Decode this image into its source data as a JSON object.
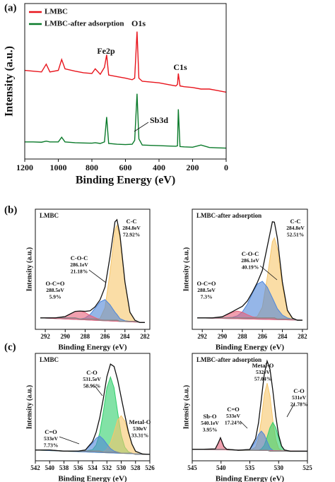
{
  "panel_labels": [
    "(a)",
    "(b)",
    "(c)"
  ],
  "chart_data": [
    {
      "type": "line",
      "xlabel": "Binding Energy (eV)",
      "ylabel": "Intensity (a.u.)",
      "xlim": [
        1200,
        0
      ],
      "xticks": [
        1200,
        1000,
        800,
        600,
        400,
        200,
        0
      ],
      "ylim": [
        0,
        100
      ],
      "legend": "upper left",
      "x": [
        1200,
        1150,
        1100,
        1072,
        1050,
        1000,
        980,
        960,
        900,
        850,
        800,
        780,
        750,
        725,
        712,
        700,
        650,
        600,
        560,
        545,
        531,
        520,
        500,
        450,
        400,
        350,
        300,
        290,
        285,
        275,
        250,
        200,
        150,
        100,
        50,
        0
      ],
      "series": [
        {
          "name": "LMBC",
          "color": "#e8141c",
          "values": [
            57,
            56.5,
            56,
            61,
            56,
            57,
            64,
            58,
            56.5,
            55.5,
            55,
            58,
            54.5,
            59,
            67,
            54,
            53,
            52,
            51,
            52,
            82,
            52,
            50,
            49.5,
            49,
            48,
            47,
            48,
            55,
            47,
            46.5,
            46,
            45,
            45,
            44,
            43
          ]
        },
        {
          "name": "LMBC-after adsorption",
          "color": "#0a7a2a",
          "values": [
            11,
            11,
            10.8,
            11.5,
            11,
            11,
            14,
            11,
            10.5,
            10.3,
            10.2,
            10.5,
            10,
            11,
            27,
            10,
            9.5,
            9.3,
            9.5,
            12,
            42,
            13,
            9,
            8.8,
            8.6,
            8.4,
            8.2,
            8.5,
            32,
            8,
            7.8,
            7.6,
            9,
            7.4,
            7.2,
            7
          ]
        }
      ],
      "annotations": [
        {
          "lines": [
            "Fe2p"
          ]
        },
        {
          "lines": [
            "O1s"
          ]
        },
        {
          "lines": [
            "C1s"
          ]
        },
        {
          "lines": [
            "Sb3d"
          ]
        }
      ]
    },
    {
      "type": "line",
      "title": "LMBC",
      "xlabel": "Binding Energy (eV)",
      "ylabel": "Intensity (a.u.)",
      "xlim": [
        293,
        281.5
      ],
      "xticks": [
        292,
        290,
        288,
        286,
        284,
        282
      ],
      "ylim": [
        0,
        105
      ],
      "x": [
        292.5,
        291,
        290,
        289,
        288.5,
        288,
        287.5,
        287,
        286.5,
        286,
        285.5,
        285,
        284.8,
        284.5,
        284,
        283.5,
        283,
        282.5,
        282
      ],
      "series": [
        {
          "color": "#f6c66b",
          "fill": true,
          "values": [
            10,
            10,
            10,
            10,
            9,
            9,
            9,
            9,
            9.5,
            19,
            50,
            87,
            91,
            80,
            41,
            15,
            8,
            6,
            6
          ]
        },
        {
          "color": "#4f86d9",
          "fill": true,
          "values": [
            10,
            10,
            10,
            10,
            9,
            10,
            13,
            18.5,
            24,
            26,
            21.5,
            15,
            13,
            9.4,
            7.5,
            7,
            7,
            6,
            6
          ]
        },
        {
          "color": "#e8607a",
          "fill": true,
          "values": [
            10,
            10,
            11.2,
            15.7,
            16,
            14.7,
            12.2,
            10.2,
            8.3,
            8,
            8,
            8,
            8,
            7,
            7,
            7,
            7,
            6,
            6
          ]
        },
        {
          "color": "#888888",
          "values": [
            10,
            10,
            10,
            10,
            9,
            9,
            9,
            9,
            8,
            8,
            8,
            8,
            8,
            7,
            7,
            7,
            7,
            6,
            6
          ]
        },
        {
          "color": "#111111",
          "values": [
            10,
            10,
            11.2,
            15.7,
            16,
            15.7,
            16.2,
            19.7,
            25.8,
            37,
            63.5,
            94,
            95.8,
            82.4,
            41.5,
            15,
            8,
            6,
            6
          ]
        }
      ],
      "annotations": [
        {
          "lines": [
            "C-C",
            "284.8eV",
            "72.92%"
          ]
        },
        {
          "lines": [
            "C-O-C",
            "286.1eV",
            "21.18%"
          ]
        },
        {
          "lines": [
            "O-C=O",
            "288.5eV",
            "5.9%"
          ]
        }
      ]
    },
    {
      "type": "line",
      "title": "LMBC-after adsorption",
      "xlabel": "Binding Energy (eV)",
      "ylabel": "Intensity (a.u.)",
      "xlim": [
        293,
        281.5
      ],
      "xticks": [
        292,
        290,
        288,
        286,
        284,
        282
      ],
      "ylim": [
        0,
        105
      ],
      "x": [
        292.5,
        291,
        290,
        289,
        288.5,
        288,
        287.5,
        287,
        286.5,
        286,
        285.5,
        285,
        284.8,
        284.5,
        284,
        283.5,
        283,
        282.5,
        282
      ],
      "series": [
        {
          "color": "#f6c66b",
          "fill": true,
          "values": [
            10,
            10,
            10,
            10,
            10,
            10,
            10,
            10,
            11.3,
            19.5,
            46,
            76.5,
            80,
            70.6,
            37.7,
            15.7,
            9.8,
            8,
            8
          ]
        },
        {
          "color": "#4f86d9",
          "fill": true,
          "values": [
            10,
            10,
            10,
            10.5,
            11.8,
            15.2,
            22,
            31.4,
            39.5,
            42,
            36.7,
            27.5,
            23.7,
            18,
            12.5,
            10,
            9,
            8,
            8
          ]
        },
        {
          "color": "#e8607a",
          "fill": true,
          "values": [
            10,
            10,
            11,
            14.9,
            16,
            14.9,
            12.8,
            11,
            10.2,
            10,
            10,
            10,
            10,
            9,
            9,
            9,
            9,
            8,
            8
          ]
        },
        {
          "color": "#888888",
          "values": [
            10,
            10,
            10,
            10,
            10,
            10,
            10,
            10,
            10,
            10,
            10,
            10,
            10,
            9,
            9,
            9,
            9,
            8,
            8
          ]
        },
        {
          "color": "#111111",
          "values": [
            10,
            10,
            11,
            15.4,
            17.8,
            20.1,
            24.8,
            32.4,
            41,
            51.5,
            72.7,
            94,
            93.7,
            79.6,
            41.2,
            16.7,
            9.8,
            8,
            8
          ]
        }
      ],
      "annotations": [
        {
          "lines": [
            "C-C",
            "284.8eV",
            "52.51%"
          ]
        },
        {
          "lines": [
            "C-O-C",
            "286.1eV",
            "40.19%"
          ]
        },
        {
          "lines": [
            "O-C=O",
            "288.5eV",
            "7.3%"
          ]
        }
      ]
    },
    {
      "type": "line",
      "title": "LMBC",
      "xlabel": "Binding Energy (eV)",
      "ylabel": "Intensity (a.u.)",
      "xlim": [
        542,
        526
      ],
      "xticks": [
        542,
        540,
        538,
        536,
        534,
        532,
        530,
        528,
        526
      ],
      "ylim": [
        0,
        100
      ],
      "x": [
        542,
        540,
        538,
        536,
        535,
        534,
        533.5,
        533,
        532.5,
        532,
        531.5,
        531,
        530.5,
        530,
        529.5,
        529,
        528.5,
        528,
        527,
        526
      ],
      "series": [
        {
          "color": "#2fcf6a",
          "fill": true,
          "values": [
            10,
            10,
            9,
            9,
            9,
            10.4,
            14.7,
            26,
            45.5,
            68,
            78,
            68,
            45.5,
            24,
            12.7,
            8.4,
            7,
            6,
            6,
            6
          ]
        },
        {
          "color": "#f6c66b",
          "fill": true,
          "values": [
            10,
            10,
            9,
            9,
            9,
            9,
            9,
            9,
            8.3,
            10.9,
            16.6,
            26.7,
            38,
            42,
            37,
            25.7,
            15.6,
            8.9,
            6.3,
            6
          ]
        },
        {
          "color": "#4f86d9",
          "fill": true,
          "values": [
            10,
            10,
            9,
            9,
            10.1,
            16.5,
            21,
            23,
            20,
            15.5,
            11.4,
            9.1,
            8,
            7,
            7,
            7,
            7,
            6,
            6,
            6
          ]
        },
        {
          "color": "#888888",
          "values": [
            10,
            10,
            9,
            9,
            9,
            9,
            9,
            9,
            8,
            8,
            8,
            8,
            8,
            7,
            7,
            7,
            7,
            6,
            6,
            6
          ]
        },
        {
          "color": "#111111",
          "values": [
            10,
            10,
            9,
            9,
            10.1,
            17.9,
            26.7,
            40,
            57.8,
            78.4,
            90,
            87.8,
            75.5,
            59,
            42.7,
            27.1,
            15.6,
            8.9,
            6.3,
            6
          ]
        }
      ],
      "annotations": [
        {
          "lines": [
            "C-O",
            "531.5eV",
            "58.96%"
          ]
        },
        {
          "lines": [
            "Metal-O",
            "530eV",
            "33.31%"
          ]
        },
        {
          "lines": [
            "C=O",
            "533eV",
            "7.73%"
          ]
        }
      ]
    },
    {
      "type": "line",
      "title": "LMBC-after adsorption",
      "xlabel": "Binding Energy (eV)",
      "ylabel": "Intensity (a.u.)",
      "xlim": [
        545,
        525
      ],
      "xticks": [
        545,
        540,
        535,
        530,
        525
      ],
      "ylim": [
        0,
        112
      ],
      "x": [
        545,
        543,
        541,
        540.5,
        540.1,
        539.5,
        539,
        537,
        535,
        534,
        533.5,
        533,
        532.5,
        532,
        531.5,
        531,
        530.5,
        530,
        529.5,
        529,
        528,
        527,
        525
      ],
      "series": [
        {
          "color": "#f6c66b",
          "fill": true,
          "values": [
            12,
            12,
            12,
            12,
            12,
            12,
            12,
            11,
            11,
            14,
            23,
            43,
            68.5,
            81,
            67.5,
            42,
            22,
            13,
            10.5,
            10,
            10,
            10,
            10
          ]
        },
        {
          "color": "#2fcf6a",
          "fill": true,
          "values": [
            12,
            12,
            12,
            12,
            12,
            12,
            12,
            11,
            11,
            11,
            11,
            12.3,
            16.1,
            24.8,
            34.6,
            40,
            34.6,
            23.8,
            15.1,
            11.3,
            10,
            10,
            10
          ]
        },
        {
          "color": "#4f86d9",
          "fill": true,
          "values": [
            12,
            12,
            12,
            12,
            12,
            12,
            12,
            11,
            11.9,
            20.2,
            27.4,
            31,
            27.4,
            20.2,
            13.4,
            10.9,
            10,
            10,
            10,
            10,
            10,
            10,
            10
          ]
        },
        {
          "color": "#e8607a",
          "fill": true,
          "values": [
            12,
            12,
            12.4,
            18.3,
            24,
            14.8,
            12,
            11,
            11,
            11,
            11,
            11,
            11,
            11,
            10,
            10,
            10,
            10,
            10,
            10,
            10,
            10,
            10
          ]
        },
        {
          "color": "#888888",
          "values": [
            12,
            12,
            12,
            12,
            12,
            12,
            12,
            11,
            11,
            11,
            11,
            11,
            11,
            11,
            10,
            10,
            10,
            10,
            10,
            10,
            10,
            10,
            10
          ]
        },
        {
          "color": "#111111",
          "values": [
            12,
            12,
            12.4,
            18.3,
            24,
            14.8,
            12,
            11,
            11.9,
            23.2,
            39.4,
            64.3,
            90,
            104,
            95.5,
            72.9,
            46.6,
            26.8,
            15.6,
            11.3,
            10,
            10,
            10
          ]
        }
      ],
      "annotations": [
        {
          "lines": [
            "Metal-O",
            "532eV",
            "57.04%"
          ]
        },
        {
          "lines": [
            "C-O",
            "531eV",
            "21.78%"
          ]
        },
        {
          "lines": [
            "C=O",
            "533eV",
            "17.24%"
          ]
        },
        {
          "lines": [
            "Sb-O",
            "540.1eV",
            "3.95%"
          ]
        }
      ]
    }
  ]
}
